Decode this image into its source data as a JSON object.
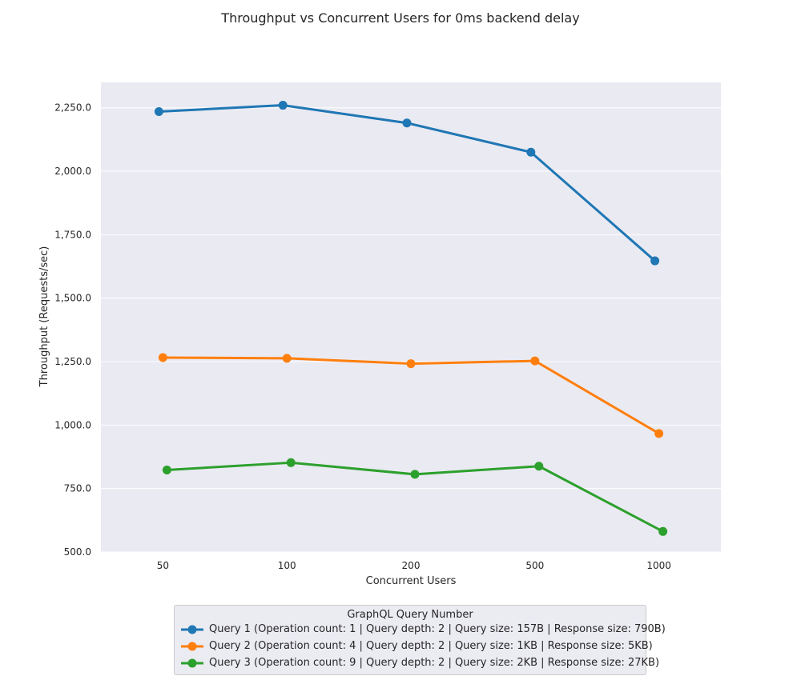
{
  "chart_data": {
    "type": "line",
    "title": "Throughput vs Concurrent Users for 0ms backend delay",
    "xlabel": "Concurrent Users",
    "ylabel": "Throughput (Requests/sec)",
    "categories": [
      "50",
      "100",
      "200",
      "500",
      "1000"
    ],
    "ylim": [
      500,
      2350
    ],
    "yticks": [
      "500.0",
      "750.0",
      "1,000.0",
      "1,250.0",
      "1,500.0",
      "1,750.0",
      "2,000.0",
      "2,250.0"
    ],
    "yticks_values": [
      500,
      750,
      1000,
      1250,
      1500,
      1750,
      2000,
      2250
    ],
    "grid": true,
    "background": "#eaeaf2",
    "legend_title": "GraphQL Query Number",
    "legend_position": "bottom-center",
    "series": [
      {
        "name": "Query 1 (Operation count: 1 | Query depth: 2 | Query size: 157B | Response size: 790B)",
        "color": "#1f77b4",
        "values": [
          2235,
          2260,
          2190,
          2075,
          1647
        ]
      },
      {
        "name": "Query 2 (Operation count: 4 | Query depth: 2 | Query size: 1KB | Response size: 5KB)",
        "color": "#ff7f0e",
        "values": [
          1266,
          1263,
          1242,
          1253,
          967
        ]
      },
      {
        "name": "Query 3 (Operation count: 9 | Query depth: 2 | Query size: 2KB | Response size: 27KB)",
        "color": "#2ca02c",
        "values": [
          823,
          852,
          806,
          838,
          581
        ]
      }
    ]
  }
}
